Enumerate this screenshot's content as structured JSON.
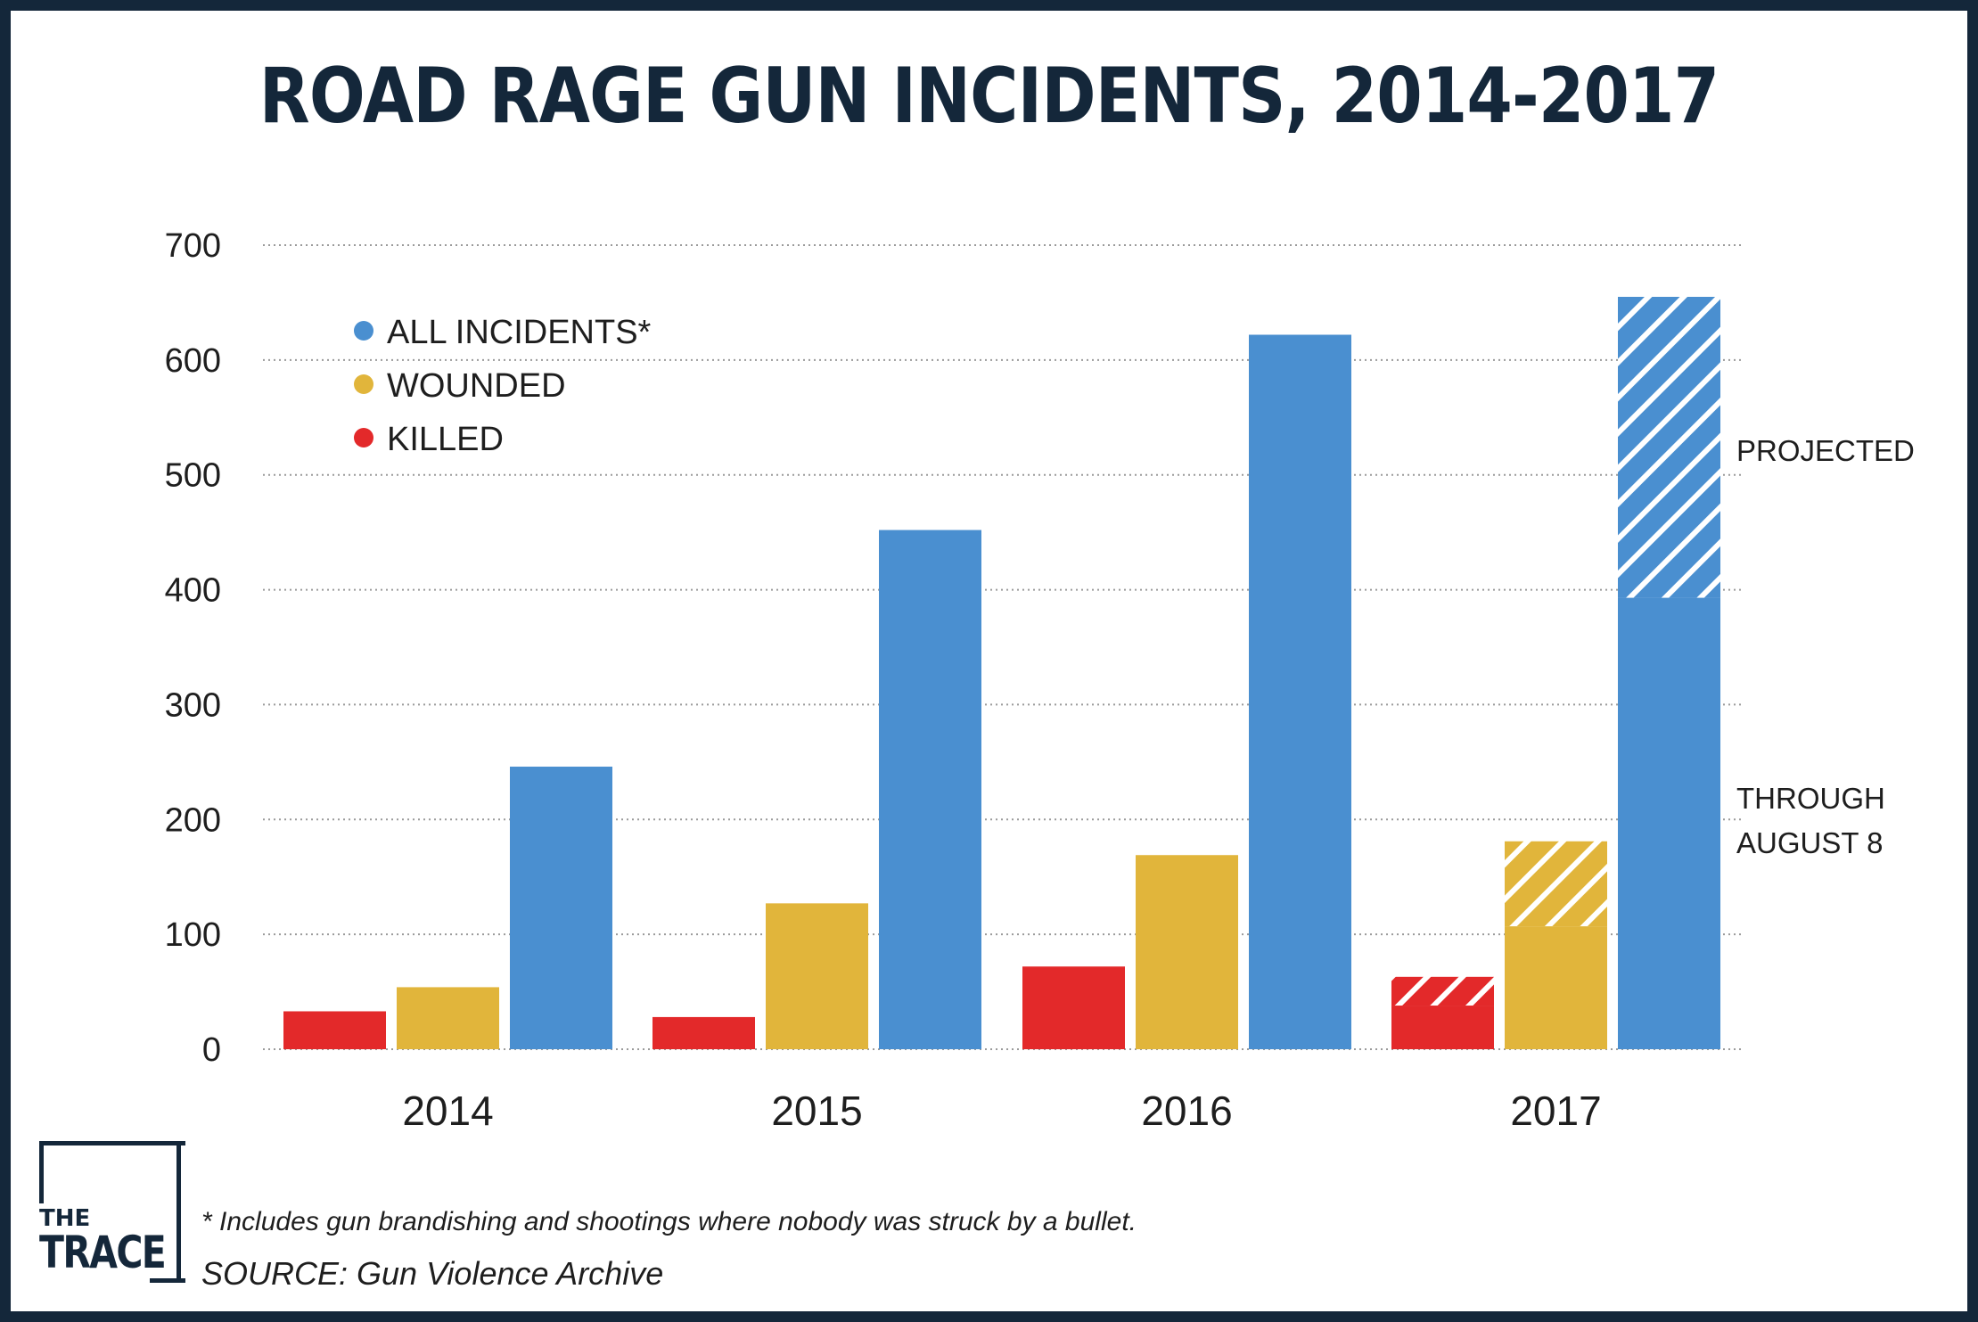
{
  "title": "ROAD RAGE GUN INCIDENTS, 2014-2017",
  "colors": {
    "killed": "#e3292a",
    "wounded": "#e1b53b",
    "all_incidents": "#4a8fd0",
    "frame": "#14273a",
    "grid": "#9a9a9a"
  },
  "chart_data": {
    "type": "bar",
    "categories": [
      "2014",
      "2015",
      "2016",
      "2017"
    ],
    "series": [
      {
        "name": "KILLED",
        "values": [
          33,
          28,
          72,
          38
        ],
        "projected": [
          null,
          null,
          null,
          63
        ]
      },
      {
        "name": "WOUNDED",
        "values": [
          54,
          127,
          169,
          107
        ],
        "projected": [
          null,
          null,
          null,
          181
        ]
      },
      {
        "name": "ALL INCIDENTS*",
        "values": [
          246,
          452,
          622,
          393
        ],
        "projected": [
          null,
          null,
          null,
          655
        ]
      }
    ],
    "ylim": [
      0,
      700
    ],
    "yticks": [
      0,
      100,
      200,
      300,
      400,
      500,
      600,
      700
    ],
    "grid": true,
    "legend": "top-left",
    "annotations": {
      "projected": "PROJECTED",
      "through_line1": "THROUGH",
      "through_line2": "AUGUST 8"
    }
  },
  "logo": {
    "line1": "THE",
    "line2": "TRACE"
  },
  "footnote": "* Includes gun brandishing and shootings where nobody was struck by a bullet.",
  "source": "SOURCE: Gun Violence Archive"
}
